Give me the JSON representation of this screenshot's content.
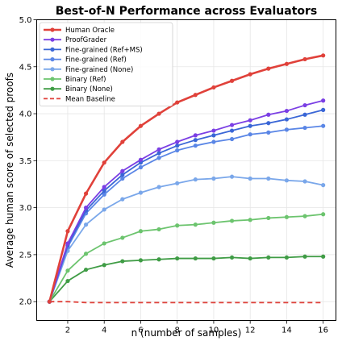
{
  "chart_data": {
    "type": "line",
    "title": "Best-of-N Performance across Evaluators",
    "xlabel": "n (number of samples)",
    "ylabel": "Average human score of selected proofs",
    "xlim": [
      0.3,
      16.7
    ],
    "ylim": [
      1.8,
      5.0
    ],
    "xticks": [
      2,
      4,
      6,
      8,
      10,
      12,
      14,
      16
    ],
    "yticks": [
      2.0,
      2.5,
      3.0,
      3.5,
      4.0,
      4.5,
      5.0
    ],
    "ytick_labels": [
      "2.0",
      "2.5",
      "3.0",
      "3.5",
      "4.0",
      "4.5",
      "5.0"
    ],
    "grid": true,
    "legend_position": "top-left",
    "x": [
      1,
      2,
      3,
      4,
      5,
      6,
      7,
      8,
      9,
      10,
      11,
      12,
      13,
      14,
      15,
      16
    ],
    "series": [
      {
        "name": "Human Oracle",
        "color": "#e0413a",
        "marker": "circle",
        "values": [
          2.0,
          2.75,
          3.15,
          3.48,
          3.7,
          3.87,
          4.0,
          4.12,
          4.2,
          4.28,
          4.35,
          4.42,
          4.48,
          4.53,
          4.58,
          4.62
        ]
      },
      {
        "name": "ProofGrader",
        "color": "#7b3fe4",
        "marker": "circle",
        "values": [
          2.0,
          2.62,
          3.0,
          3.22,
          3.39,
          3.51,
          3.62,
          3.7,
          3.77,
          3.82,
          3.88,
          3.93,
          3.99,
          4.03,
          4.09,
          4.14
        ]
      },
      {
        "name": "Fine-grained (Ref+MS)",
        "color": "#3a66d6",
        "marker": "circle",
        "values": [
          2.0,
          2.6,
          2.97,
          3.18,
          3.35,
          3.48,
          3.58,
          3.66,
          3.72,
          3.77,
          3.82,
          3.87,
          3.9,
          3.94,
          3.99,
          4.04
        ]
      },
      {
        "name": "Fine-grained (Ref)",
        "color": "#5a86e6",
        "marker": "circle",
        "values": [
          2.0,
          2.58,
          2.94,
          3.14,
          3.31,
          3.43,
          3.53,
          3.61,
          3.66,
          3.7,
          3.73,
          3.78,
          3.8,
          3.83,
          3.85,
          3.87
        ]
      },
      {
        "name": "Fine-grained (None)",
        "color": "#7aa7ea",
        "marker": "circle",
        "values": [
          2.0,
          2.54,
          2.82,
          2.98,
          3.09,
          3.16,
          3.22,
          3.26,
          3.3,
          3.31,
          3.33,
          3.31,
          3.31,
          3.29,
          3.28,
          3.24
        ]
      },
      {
        "name": "Binary (Ref)",
        "color": "#6cc46e",
        "marker": "circle",
        "values": [
          2.0,
          2.33,
          2.51,
          2.62,
          2.68,
          2.75,
          2.77,
          2.81,
          2.82,
          2.84,
          2.86,
          2.87,
          2.89,
          2.9,
          2.91,
          2.93
        ]
      },
      {
        "name": "Binary (None)",
        "color": "#3f9c45",
        "marker": "circle",
        "values": [
          2.0,
          2.22,
          2.34,
          2.39,
          2.43,
          2.44,
          2.45,
          2.46,
          2.46,
          2.46,
          2.47,
          2.46,
          2.47,
          2.47,
          2.48,
          2.48
        ]
      },
      {
        "name": "Mean Baseline",
        "color": "#e0413a",
        "marker": "none",
        "dashed": true,
        "values": [
          2.0,
          2.0,
          1.99,
          1.99,
          1.99,
          1.99,
          1.99,
          1.99,
          1.99,
          1.99,
          1.99,
          1.99,
          1.99,
          1.99,
          1.99,
          1.99
        ]
      }
    ]
  }
}
